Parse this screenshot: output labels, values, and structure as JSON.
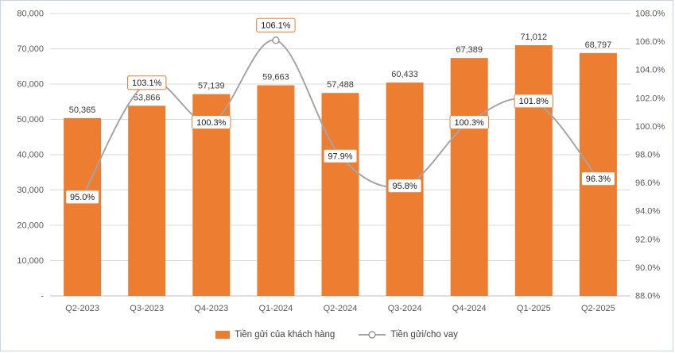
{
  "chart_data": {
    "type": "bar",
    "combo": "bar+line",
    "categories": [
      "Q2-2023",
      "Q3-2023",
      "Q4-2023",
      "Q1-2024",
      "Q2-2024",
      "Q3-2024",
      "Q4-2024",
      "Q1-2025",
      "Q2-2025"
    ],
    "series": [
      {
        "name": "Tiền gửi của khách hàng",
        "type": "bar",
        "axis": "left",
        "color": "#ED7D31",
        "values": [
          50365,
          53866,
          57139,
          59663,
          57488,
          60433,
          67389,
          71012,
          68797
        ],
        "labels": [
          "50,365",
          "53,866",
          "57,139",
          "59,663",
          "57,488",
          "60,433",
          "67,389",
          "71,012",
          "68,797"
        ]
      },
      {
        "name": "Tiền gửi/cho vay",
        "type": "line",
        "axis": "right",
        "color": "#A5A5A5",
        "marker_fill": "#ffffff",
        "marker_stroke": "#999999",
        "label_box_border": "#ED7D31",
        "label_box_fill": "#ffffff",
        "values": [
          95.0,
          103.1,
          100.3,
          106.1,
          97.9,
          95.8,
          100.3,
          101.8,
          96.3
        ],
        "labels": [
          "95.0%",
          "103.1%",
          "100.3%",
          "106.1%",
          "97.9%",
          "95.8%",
          "100.3%",
          "101.8%",
          "96.3%"
        ]
      }
    ],
    "left_axis": {
      "min": 0,
      "max": 80000,
      "step": 10000,
      "tick_labels": [
        "-",
        "10,000",
        "20,000",
        "30,000",
        "40,000",
        "50,000",
        "60,000",
        "70,000",
        "80,000"
      ]
    },
    "right_axis": {
      "min": 88,
      "max": 108,
      "step": 2,
      "tick_labels": [
        "88.0%",
        "90.0%",
        "92.0%",
        "94.0%",
        "96.0%",
        "98.0%",
        "100.0%",
        "102.0%",
        "104.0%",
        "106.0%",
        "108.0%"
      ]
    },
    "grid": true,
    "grid_color": "#d9d9d9",
    "axis_line_color": "#bfbfbf",
    "legend_position": "bottom",
    "legend": [
      {
        "label": "Tiền gửi của khách hàng",
        "marker": "bar-swatch",
        "color": "#ED7D31"
      },
      {
        "label": "Tiền gửi/cho vay",
        "marker": "line-marker",
        "color": "#A5A5A5"
      }
    ]
  }
}
